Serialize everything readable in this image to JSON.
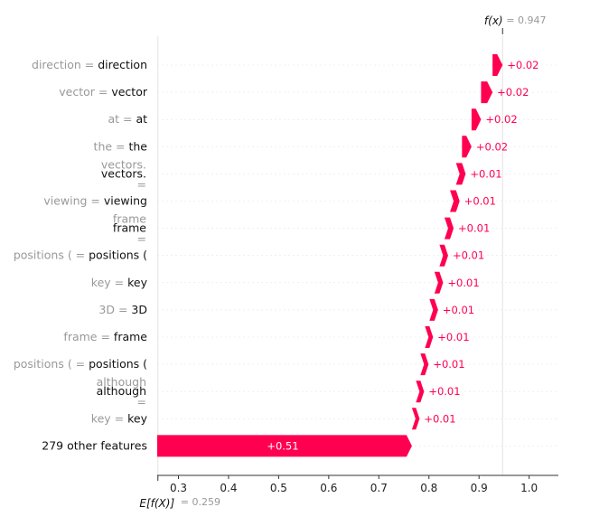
{
  "chart_data": {
    "type": "waterfall",
    "title": "",
    "fx_label": "f(x)",
    "fx_value_text": "= 0.947",
    "ex_label": "E[f(X)]",
    "ex_value_text": "= 0.259",
    "fx": 0.947,
    "ex": 0.259,
    "xlim": [
      0.26,
      1.06
    ],
    "x_ticks": [
      0.3,
      0.4,
      0.5,
      0.6,
      0.7,
      0.8,
      0.9,
      1.0
    ],
    "x_tick_labels": [
      "0.3",
      "0.4",
      "0.5",
      "0.6",
      "0.7",
      "0.8",
      "0.9",
      "1.0"
    ],
    "positive_color": "#ff0051",
    "features": [
      {
        "feature": "direction",
        "value": "direction",
        "shap": 0.02,
        "label": "+0.02",
        "start": 0.927,
        "end": 0.947
      },
      {
        "feature": "vector",
        "value": "vector",
        "shap": 0.02,
        "label": "+0.02",
        "start": 0.904,
        "end": 0.927
      },
      {
        "feature": "at",
        "value": "at",
        "shap": 0.02,
        "label": "+0.02",
        "start": 0.885,
        "end": 0.904
      },
      {
        "feature": "the",
        "value": "the",
        "shap": 0.02,
        "label": "+0.02",
        "start": 0.866,
        "end": 0.885
      },
      {
        "feature": "vectors.",
        "value": "vectors.",
        "feature_is_stacked": true,
        "shap": 0.01,
        "label": "+0.01",
        "start": 0.854,
        "end": 0.866
      },
      {
        "feature": "viewing",
        "value": "viewing",
        "shap": 0.01,
        "label": "+0.01",
        "start": 0.842,
        "end": 0.854
      },
      {
        "feature": "frame",
        "value": "frame",
        "feature_is_stacked": true,
        "shap": 0.01,
        "label": "+0.01",
        "start": 0.831,
        "end": 0.842
      },
      {
        "feature": "positions (",
        "value": "positions (",
        "shap": 0.01,
        "label": "+0.01",
        "start": 0.821,
        "end": 0.831
      },
      {
        "feature": "key",
        "value": "key",
        "shap": 0.01,
        "label": "+0.01",
        "start": 0.811,
        "end": 0.821
      },
      {
        "feature": "3D",
        "value": "3D",
        "shap": 0.01,
        "label": "+0.01",
        "start": 0.801,
        "end": 0.811
      },
      {
        "feature": "frame",
        "value": "frame",
        "shap": 0.01,
        "label": "+0.01",
        "start": 0.792,
        "end": 0.801
      },
      {
        "feature": "positions (",
        "value": "positions (",
        "shap": 0.01,
        "label": "+0.01",
        "start": 0.783,
        "end": 0.792
      },
      {
        "feature": "although",
        "value": "although",
        "feature_is_stacked": true,
        "shap": 0.01,
        "label": "+0.01",
        "start": 0.774,
        "end": 0.783
      },
      {
        "feature": "key",
        "value": "key",
        "shap": 0.01,
        "label": "+0.01",
        "start": 0.766,
        "end": 0.774
      }
    ],
    "other": {
      "label": "279 other features",
      "shap": 0.51,
      "value_label": "+0.51",
      "start": 0.259,
      "end": 0.766
    }
  }
}
